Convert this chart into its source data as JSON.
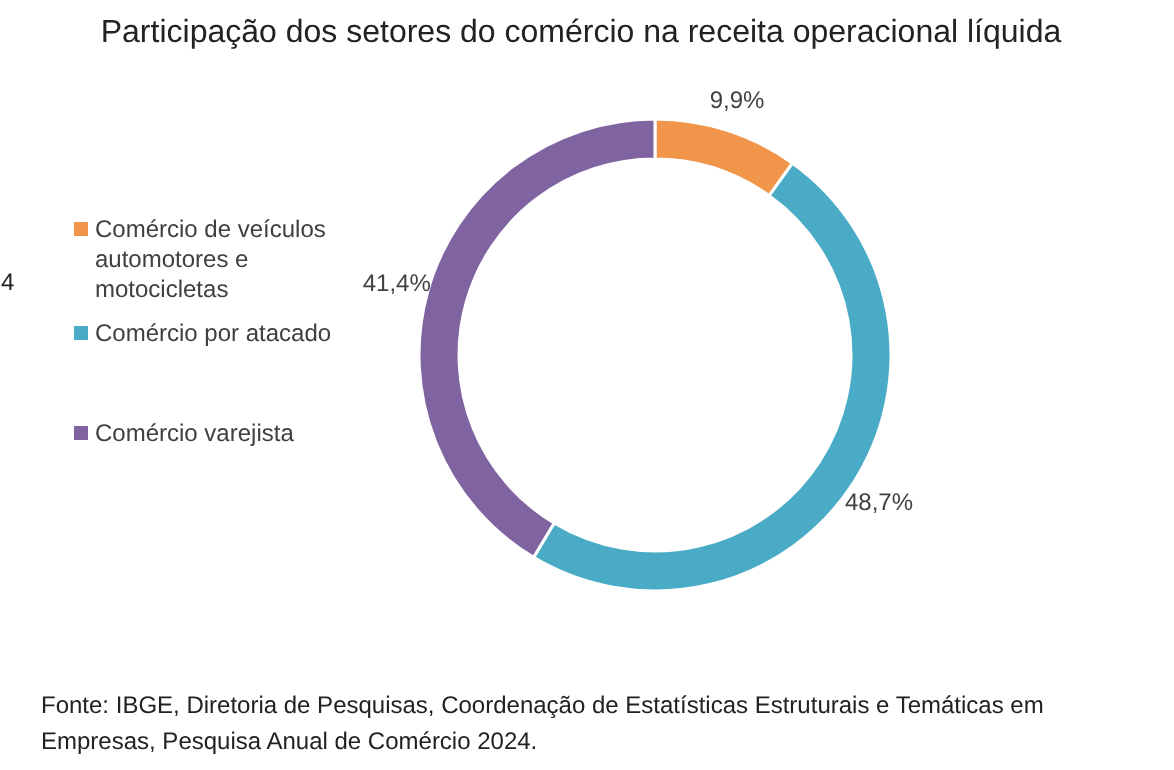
{
  "chart_data": {
    "type": "donut",
    "title": "Participação dos setores do comércio na receita operacional líquida",
    "categories": [
      "Comércio de veículos automotores e motocicletas",
      "Comércio por atacado",
      "Comércio varejista"
    ],
    "values": [
      9.9,
      48.7,
      41.4
    ],
    "colors": [
      "#f0954a",
      "#4aabc6",
      "#8064a2"
    ],
    "value_labels": [
      "9,9%",
      "48,7%",
      "41,4%"
    ],
    "legend": "left",
    "annotations": [
      "4",
      "Fonte: IBGE, Diretoria de Pesquisas, Coordenação de Estatísticas Estruturais e Temáticas em Empresas, Pesquisa Anual de Comércio 2024."
    ]
  }
}
